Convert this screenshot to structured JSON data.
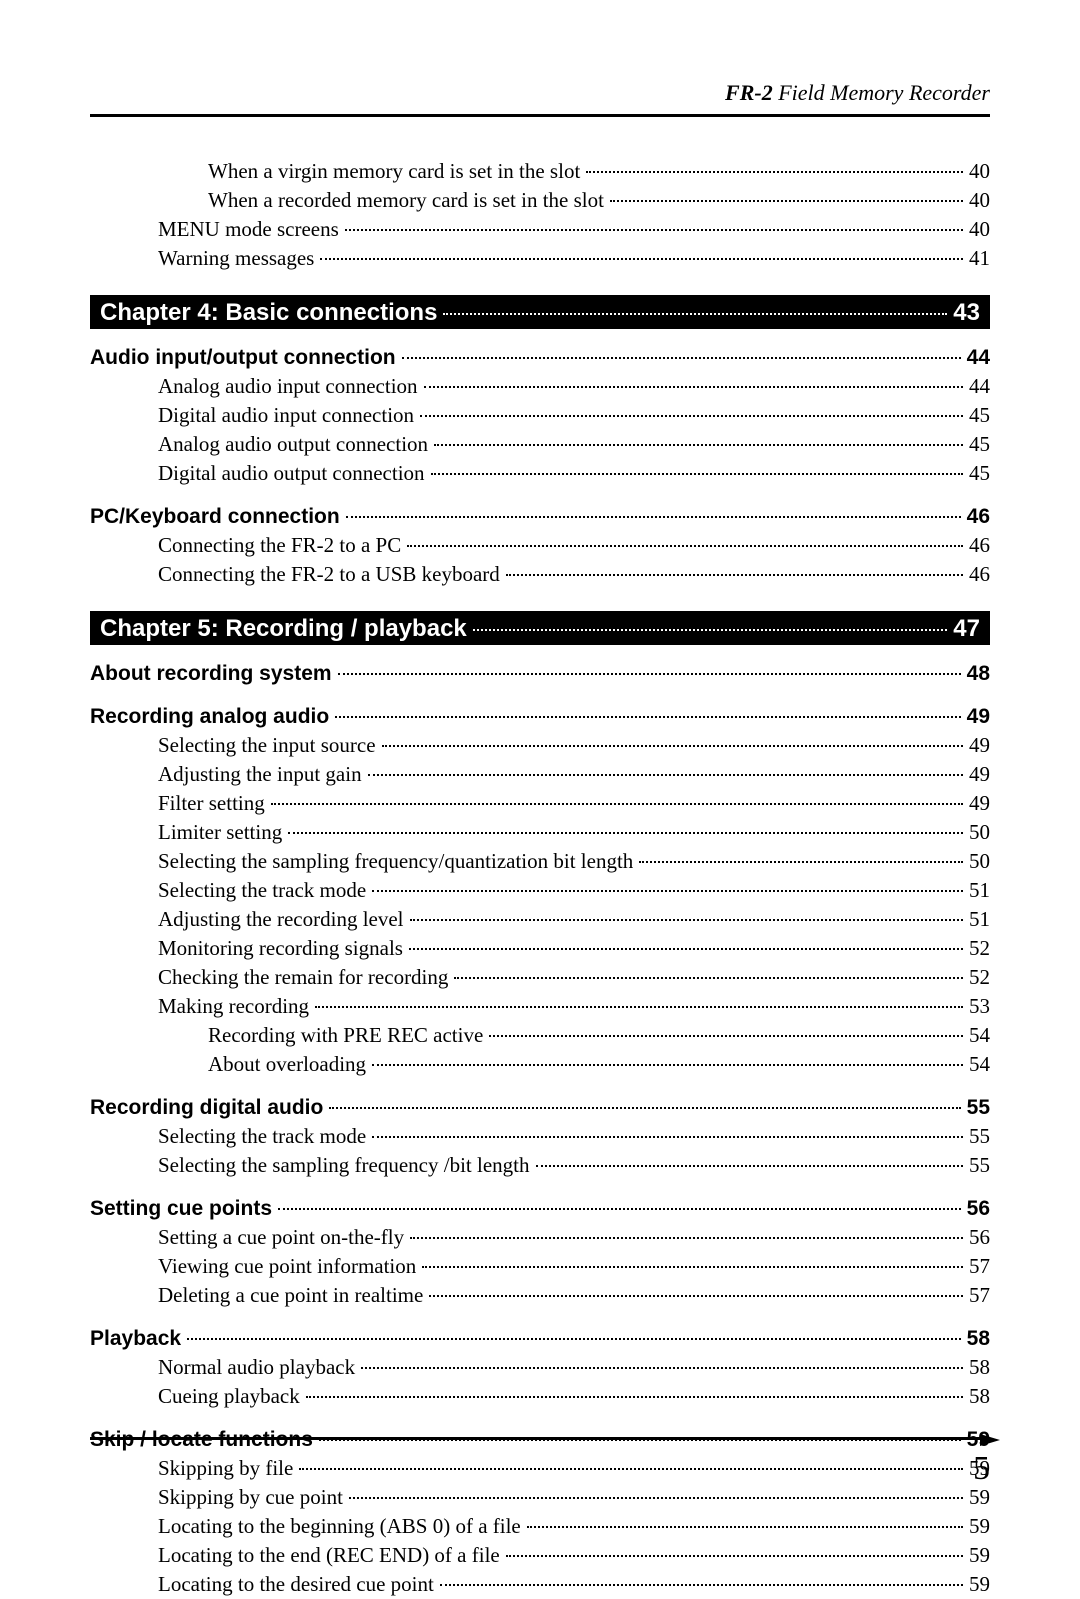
{
  "header": {
    "model": "FR-2",
    "desc": "Field Memory Recorder"
  },
  "page_number": "5",
  "lines": [
    {
      "type": "entry",
      "indent": 2,
      "label": "When a virgin memory card is set in the slot",
      "page": "40"
    },
    {
      "type": "entry",
      "indent": 2,
      "label": "When a recorded memory card is set in the slot",
      "page": "40"
    },
    {
      "type": "entry",
      "indent": 1,
      "label": "MENU mode screens",
      "page": "40"
    },
    {
      "type": "entry",
      "indent": 1,
      "label": "Warning messages",
      "page": "41"
    },
    {
      "type": "chapter",
      "label": "Chapter 4: Basic connections",
      "page": "43"
    },
    {
      "type": "section",
      "label": "Audio input/output connection",
      "page": "44"
    },
    {
      "type": "entry",
      "indent": 1,
      "label": "Analog audio input connection",
      "page": "44"
    },
    {
      "type": "entry",
      "indent": 1,
      "label": "Digital audio input connection",
      "page": "45"
    },
    {
      "type": "entry",
      "indent": 1,
      "label": "Analog audio output connection",
      "page": "45"
    },
    {
      "type": "entry",
      "indent": 1,
      "label": "Digital audio output connection",
      "page": "45"
    },
    {
      "type": "section",
      "label": "PC/Keyboard connection",
      "page": "46"
    },
    {
      "type": "entry",
      "indent": 1,
      "label": "Connecting the FR-2 to a PC",
      "page": "46"
    },
    {
      "type": "entry",
      "indent": 1,
      "label": "Connecting the FR-2 to a USB keyboard",
      "page": "46"
    },
    {
      "type": "chapter",
      "label": "Chapter 5: Recording / playback",
      "page": "47"
    },
    {
      "type": "section",
      "label": "About recording system",
      "page": "48"
    },
    {
      "type": "section",
      "label": "Recording analog audio",
      "page": "49"
    },
    {
      "type": "entry",
      "indent": 1,
      "label": "Selecting the input source",
      "page": "49"
    },
    {
      "type": "entry",
      "indent": 1,
      "label": "Adjusting the input gain",
      "page": "49"
    },
    {
      "type": "entry",
      "indent": 1,
      "label": "Filter setting",
      "page": "49"
    },
    {
      "type": "entry",
      "indent": 1,
      "label": "Limiter setting",
      "page": "50"
    },
    {
      "type": "entry",
      "indent": 1,
      "label": "Selecting the sampling frequency/quantization bit length",
      "page": "50"
    },
    {
      "type": "entry",
      "indent": 1,
      "label": "Selecting the track mode",
      "page": "51"
    },
    {
      "type": "entry",
      "indent": 1,
      "label": "Adjusting the recording level",
      "page": "51"
    },
    {
      "type": "entry",
      "indent": 1,
      "label": "Monitoring recording signals",
      "page": "52"
    },
    {
      "type": "entry",
      "indent": 1,
      "label": "Checking the remain for recording",
      "page": "52"
    },
    {
      "type": "entry",
      "indent": 1,
      "label": "Making recording",
      "page": "53"
    },
    {
      "type": "entry",
      "indent": 2,
      "label": "Recording with PRE REC active",
      "page": "54"
    },
    {
      "type": "entry",
      "indent": 2,
      "label": "About overloading",
      "page": "54"
    },
    {
      "type": "section",
      "label": "Recording digital audio",
      "page": "55"
    },
    {
      "type": "entry",
      "indent": 1,
      "label": "Selecting the track mode",
      "page": "55"
    },
    {
      "type": "entry",
      "indent": 1,
      "label": "Selecting the sampling frequency /bit length",
      "page": "55"
    },
    {
      "type": "section",
      "label": "Setting cue points",
      "page": "56"
    },
    {
      "type": "entry",
      "indent": 1,
      "label": "Setting a cue point on-the-fly",
      "page": "56"
    },
    {
      "type": "entry",
      "indent": 1,
      "label": "Viewing cue point information",
      "page": "57"
    },
    {
      "type": "entry",
      "indent": 1,
      "label": "Deleting a cue point in realtime",
      "page": "57"
    },
    {
      "type": "section",
      "label": "Playback",
      "page": "58"
    },
    {
      "type": "entry",
      "indent": 1,
      "label": "Normal audio playback",
      "page": "58"
    },
    {
      "type": "entry",
      "indent": 1,
      "label": "Cueing playback",
      "page": "58"
    },
    {
      "type": "section",
      "label": "Skip / locate functions",
      "page": "59"
    },
    {
      "type": "entry",
      "indent": 1,
      "label": "Skipping by file",
      "page": "59"
    },
    {
      "type": "entry",
      "indent": 1,
      "label": "Skipping by cue point",
      "page": "59"
    },
    {
      "type": "entry",
      "indent": 1,
      "label": "Locating to the beginning (ABS 0) of a file",
      "page": "59"
    },
    {
      "type": "entry",
      "indent": 1,
      "label": "Locating to the end (REC END) of a file",
      "page": "59"
    },
    {
      "type": "entry",
      "indent": 1,
      "label": "Locating to the desired cue point",
      "page": "59"
    }
  ]
}
